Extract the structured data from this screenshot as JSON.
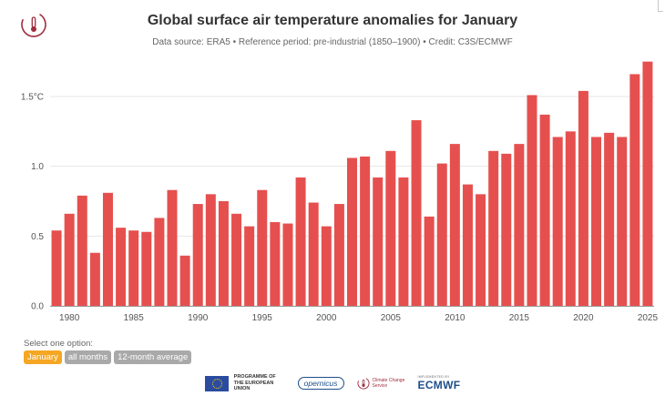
{
  "header": {
    "title": "Global surface air temperature anomalies for January",
    "subtitle": "Data source: ERA5 • Reference period: pre-industrial (1850–1900) • Credit: C3S/ECMWF"
  },
  "chart_data": {
    "type": "bar",
    "title": "Global surface air temperature anomalies for January",
    "subtitle": "Data source: ERA5 • Reference period: pre-industrial (1850–1900) • Credit: C3S/ECMWF",
    "xlabel": "",
    "ylabel": "",
    "ylim": [
      0,
      1.8
    ],
    "yticks": [
      0,
      0.5,
      1.0,
      1.5
    ],
    "ytick_labels": [
      "0.0",
      "0.5",
      "1.0",
      "1.5°C"
    ],
    "xticks": [
      1980,
      1985,
      1990,
      1995,
      2000,
      2005,
      2010,
      2015,
      2020,
      2025
    ],
    "grid": "horizontal",
    "bar_color": "#e5504f",
    "x": [
      1979,
      1980,
      1981,
      1982,
      1983,
      1984,
      1985,
      1986,
      1987,
      1988,
      1989,
      1990,
      1991,
      1992,
      1993,
      1994,
      1995,
      1996,
      1997,
      1998,
      1999,
      2000,
      2001,
      2002,
      2003,
      2004,
      2005,
      2006,
      2007,
      2008,
      2009,
      2010,
      2011,
      2012,
      2013,
      2014,
      2015,
      2016,
      2017,
      2018,
      2019,
      2020,
      2021,
      2022,
      2023,
      2024,
      2025
    ],
    "values": [
      0.54,
      0.66,
      0.79,
      0.38,
      0.81,
      0.56,
      0.54,
      0.53,
      0.63,
      0.83,
      0.36,
      0.73,
      0.8,
      0.75,
      0.66,
      0.57,
      0.83,
      0.6,
      0.59,
      0.92,
      0.74,
      0.57,
      0.73,
      1.06,
      1.07,
      0.92,
      1.11,
      0.92,
      1.33,
      0.64,
      1.02,
      1.16,
      0.87,
      0.8,
      1.11,
      1.09,
      1.16,
      1.51,
      1.37,
      1.21,
      1.25,
      1.54,
      1.21,
      1.24,
      1.21,
      1.66,
      1.75
    ]
  },
  "options": {
    "label": "Select one option:",
    "buttons": [
      "January",
      "all months",
      "12-month average"
    ],
    "active": 0
  },
  "footer": {
    "eu_text": "PROGRAMME OF THE EUROPEAN UNION",
    "copernicus": "opernicus",
    "c3s_text": "Climate Change Service",
    "ecmwf_small": "IMPLEMENTED BY",
    "ecmwf": "ECMWF"
  },
  "colors": {
    "bar": "#e5504f",
    "active_option": "#f5a623",
    "inactive_option": "#a9a9a9",
    "logo": "#a02c3c"
  }
}
